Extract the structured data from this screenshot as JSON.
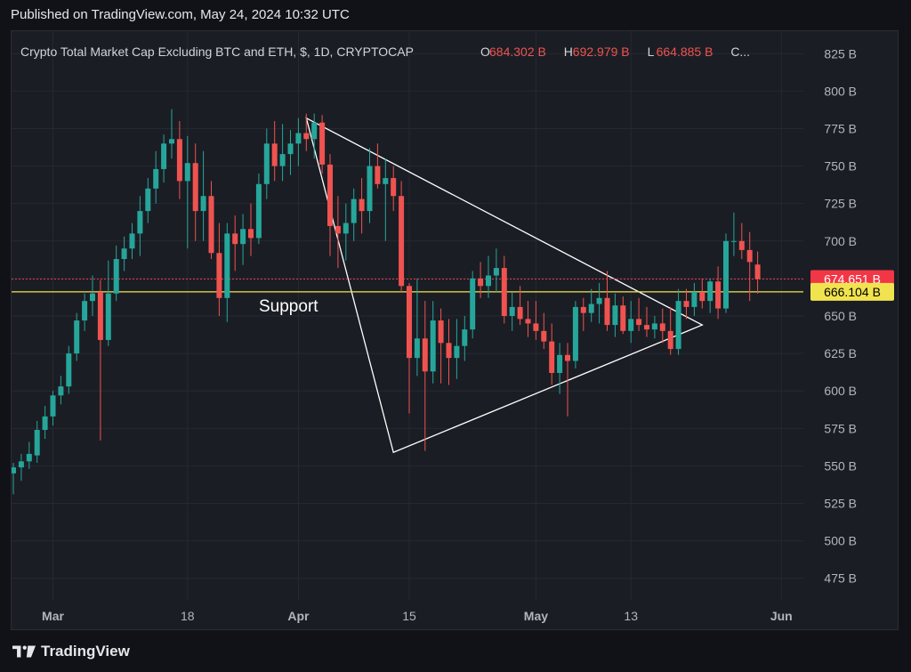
{
  "published_text": "Published on TradingView.com, May 24, 2024 10:32 UTC",
  "brand": "TradingView",
  "colors": {
    "background": "#1b1d24",
    "up": "#26a69a",
    "down": "#ef5350",
    "support": "#f1e34f",
    "triangle": "#ffffff",
    "grid": "#262932",
    "axis_text": "#b2b5be"
  },
  "chart_data": {
    "type": "candlestick",
    "title_prefix": "Crypto Total Market Cap Excluding BTC and ETH, $, 1D, CRYPTOCAP",
    "ohlc_labels": [
      {
        "key": "O",
        "value": "684.302 B"
      },
      {
        "key": "H",
        "value": "692.979 B"
      },
      {
        "key": "L",
        "value": "664.885 B"
      },
      {
        "key": "C",
        "value": "..."
      }
    ],
    "ylim": [
      460,
      840
    ],
    "y_ticks": [
      475,
      500,
      525,
      550,
      575,
      600,
      625,
      650,
      675,
      700,
      725,
      750,
      775,
      800,
      825
    ],
    "y_tick_labels": [
      "475 B",
      "500 B",
      "525 B",
      "550 B",
      "575 B",
      "600 B",
      "625 B",
      "650 B",
      "675 B",
      "700 B",
      "725 B",
      "750 B",
      "775 B",
      "800 B",
      "825 B"
    ],
    "x_tick_labels": [
      {
        "label": "Mar",
        "index": 5,
        "bold": true
      },
      {
        "label": "18",
        "index": 22,
        "bold": false
      },
      {
        "label": "Apr",
        "index": 36,
        "bold": true
      },
      {
        "label": "15",
        "index": 50,
        "bold": false
      },
      {
        "label": "May",
        "index": 66,
        "bold": true
      },
      {
        "label": "13",
        "index": 78,
        "bold": false
      },
      {
        "label": "Jun",
        "index": 97,
        "bold": true
      }
    ],
    "price_labels": [
      {
        "value": 674.651,
        "text": "674.651 B",
        "color": "#f23645",
        "text_color": "#ffffff"
      },
      {
        "value": 666.104,
        "text": "666.104 B",
        "color": "#f1e34f",
        "text_color": "#000000"
      }
    ],
    "support": {
      "value": 666.104,
      "label": "Support"
    },
    "triangle": [
      {
        "index": 37,
        "value": 782
      },
      {
        "index": 87,
        "value": 644
      },
      {
        "index": 48,
        "value": 559
      }
    ],
    "candles": [
      {
        "o": 545,
        "h": 552,
        "l": 531,
        "c": 549
      },
      {
        "o": 549,
        "h": 558,
        "l": 540,
        "c": 553
      },
      {
        "o": 553,
        "h": 566,
        "l": 548,
        "c": 558
      },
      {
        "o": 557,
        "h": 580,
        "l": 552,
        "c": 574
      },
      {
        "o": 574,
        "h": 590,
        "l": 568,
        "c": 583
      },
      {
        "o": 583,
        "h": 600,
        "l": 577,
        "c": 597
      },
      {
        "o": 597,
        "h": 610,
        "l": 591,
        "c": 603
      },
      {
        "o": 603,
        "h": 630,
        "l": 598,
        "c": 625
      },
      {
        "o": 625,
        "h": 652,
        "l": 620,
        "c": 647
      },
      {
        "o": 647,
        "h": 665,
        "l": 640,
        "c": 660
      },
      {
        "o": 660,
        "h": 677,
        "l": 650,
        "c": 665
      },
      {
        "o": 666,
        "h": 674,
        "l": 567,
        "c": 634
      },
      {
        "o": 634,
        "h": 687,
        "l": 630,
        "c": 665
      },
      {
        "o": 665,
        "h": 697,
        "l": 660,
        "c": 688
      },
      {
        "o": 688,
        "h": 703,
        "l": 680,
        "c": 695
      },
      {
        "o": 695,
        "h": 712,
        "l": 688,
        "c": 705
      },
      {
        "o": 705,
        "h": 730,
        "l": 690,
        "c": 720
      },
      {
        "o": 720,
        "h": 742,
        "l": 712,
        "c": 735
      },
      {
        "o": 735,
        "h": 760,
        "l": 725,
        "c": 748
      },
      {
        "o": 748,
        "h": 771,
        "l": 739,
        "c": 765
      },
      {
        "o": 765,
        "h": 788,
        "l": 755,
        "c": 768
      },
      {
        "o": 768,
        "h": 780,
        "l": 728,
        "c": 740
      },
      {
        "o": 740,
        "h": 770,
        "l": 695,
        "c": 752
      },
      {
        "o": 752,
        "h": 765,
        "l": 700,
        "c": 720
      },
      {
        "o": 720,
        "h": 760,
        "l": 700,
        "c": 730
      },
      {
        "o": 730,
        "h": 740,
        "l": 688,
        "c": 692
      },
      {
        "o": 692,
        "h": 712,
        "l": 650,
        "c": 662
      },
      {
        "o": 662,
        "h": 712,
        "l": 646,
        "c": 705
      },
      {
        "o": 705,
        "h": 717,
        "l": 680,
        "c": 698
      },
      {
        "o": 698,
        "h": 718,
        "l": 684,
        "c": 708
      },
      {
        "o": 708,
        "h": 725,
        "l": 690,
        "c": 702
      },
      {
        "o": 702,
        "h": 745,
        "l": 698,
        "c": 738
      },
      {
        "o": 738,
        "h": 775,
        "l": 728,
        "c": 765
      },
      {
        "o": 765,
        "h": 780,
        "l": 740,
        "c": 750
      },
      {
        "o": 750,
        "h": 778,
        "l": 740,
        "c": 758
      },
      {
        "o": 758,
        "h": 774,
        "l": 744,
        "c": 765
      },
      {
        "o": 765,
        "h": 782,
        "l": 750,
        "c": 772
      },
      {
        "o": 772,
        "h": 785,
        "l": 760,
        "c": 768
      },
      {
        "o": 768,
        "h": 785,
        "l": 755,
        "c": 779
      },
      {
        "o": 779,
        "h": 784,
        "l": 745,
        "c": 751
      },
      {
        "o": 751,
        "h": 758,
        "l": 690,
        "c": 710
      },
      {
        "o": 710,
        "h": 730,
        "l": 682,
        "c": 705
      },
      {
        "o": 705,
        "h": 725,
        "l": 687,
        "c": 712
      },
      {
        "o": 712,
        "h": 735,
        "l": 700,
        "c": 728
      },
      {
        "o": 728,
        "h": 742,
        "l": 705,
        "c": 720
      },
      {
        "o": 720,
        "h": 762,
        "l": 712,
        "c": 750
      },
      {
        "o": 750,
        "h": 765,
        "l": 735,
        "c": 738
      },
      {
        "o": 738,
        "h": 755,
        "l": 700,
        "c": 742
      },
      {
        "o": 742,
        "h": 750,
        "l": 720,
        "c": 730
      },
      {
        "o": 730,
        "h": 740,
        "l": 666,
        "c": 670
      },
      {
        "o": 670,
        "h": 672,
        "l": 585,
        "c": 622
      },
      {
        "o": 622,
        "h": 675,
        "l": 610,
        "c": 635
      },
      {
        "o": 635,
        "h": 660,
        "l": 560,
        "c": 613
      },
      {
        "o": 613,
        "h": 660,
        "l": 605,
        "c": 647
      },
      {
        "o": 647,
        "h": 655,
        "l": 605,
        "c": 632
      },
      {
        "o": 632,
        "h": 648,
        "l": 604,
        "c": 622
      },
      {
        "o": 622,
        "h": 648,
        "l": 608,
        "c": 630
      },
      {
        "o": 630,
        "h": 650,
        "l": 620,
        "c": 641
      },
      {
        "o": 641,
        "h": 680,
        "l": 635,
        "c": 675
      },
      {
        "o": 675,
        "h": 686,
        "l": 662,
        "c": 670
      },
      {
        "o": 670,
        "h": 690,
        "l": 662,
        "c": 677
      },
      {
        "o": 677,
        "h": 695,
        "l": 666,
        "c": 682
      },
      {
        "o": 682,
        "h": 690,
        "l": 645,
        "c": 650
      },
      {
        "o": 650,
        "h": 666,
        "l": 640,
        "c": 656
      },
      {
        "o": 656,
        "h": 670,
        "l": 644,
        "c": 648
      },
      {
        "o": 648,
        "h": 660,
        "l": 636,
        "c": 645
      },
      {
        "o": 645,
        "h": 660,
        "l": 634,
        "c": 640
      },
      {
        "o": 640,
        "h": 652,
        "l": 628,
        "c": 633
      },
      {
        "o": 633,
        "h": 645,
        "l": 604,
        "c": 612
      },
      {
        "o": 612,
        "h": 632,
        "l": 598,
        "c": 624
      },
      {
        "o": 624,
        "h": 632,
        "l": 583,
        "c": 620
      },
      {
        "o": 620,
        "h": 660,
        "l": 615,
        "c": 656
      },
      {
        "o": 656,
        "h": 662,
        "l": 640,
        "c": 652
      },
      {
        "o": 652,
        "h": 668,
        "l": 646,
        "c": 658
      },
      {
        "o": 658,
        "h": 672,
        "l": 645,
        "c": 662
      },
      {
        "o": 662,
        "h": 680,
        "l": 640,
        "c": 644
      },
      {
        "o": 644,
        "h": 665,
        "l": 636,
        "c": 657
      },
      {
        "o": 657,
        "h": 663,
        "l": 638,
        "c": 640
      },
      {
        "o": 640,
        "h": 660,
        "l": 632,
        "c": 648
      },
      {
        "o": 648,
        "h": 662,
        "l": 640,
        "c": 644
      },
      {
        "o": 644,
        "h": 656,
        "l": 636,
        "c": 641
      },
      {
        "o": 641,
        "h": 650,
        "l": 635,
        "c": 645
      },
      {
        "o": 645,
        "h": 655,
        "l": 632,
        "c": 640
      },
      {
        "o": 640,
        "h": 656,
        "l": 624,
        "c": 628
      },
      {
        "o": 628,
        "h": 668,
        "l": 624,
        "c": 660
      },
      {
        "o": 660,
        "h": 668,
        "l": 648,
        "c": 656
      },
      {
        "o": 656,
        "h": 672,
        "l": 650,
        "c": 666
      },
      {
        "o": 666,
        "h": 675,
        "l": 655,
        "c": 660
      },
      {
        "o": 660,
        "h": 675,
        "l": 652,
        "c": 673
      },
      {
        "o": 673,
        "h": 683,
        "l": 648,
        "c": 655
      },
      {
        "o": 655,
        "h": 705,
        "l": 652,
        "c": 700
      },
      {
        "o": 700,
        "h": 719,
        "l": 690,
        "c": 700
      },
      {
        "o": 700,
        "h": 712,
        "l": 688,
        "c": 694
      },
      {
        "o": 694,
        "h": 706,
        "l": 660,
        "c": 686
      },
      {
        "o": 684.302,
        "h": 692.979,
        "l": 664.885,
        "c": 674.651
      }
    ]
  }
}
